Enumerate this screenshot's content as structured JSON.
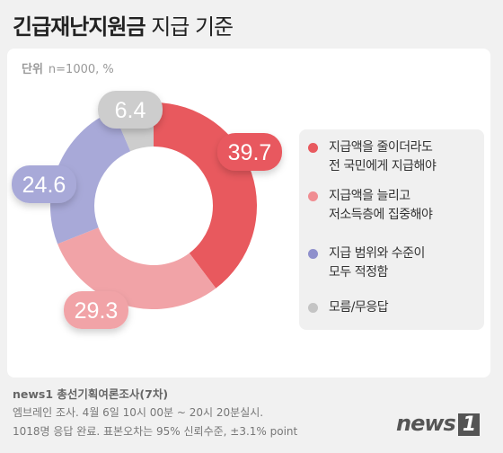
{
  "title": {
    "bold": "긴급재난지원금",
    "light": " 지급 기준"
  },
  "unit": {
    "label": "단위",
    "text": "n=1000, %"
  },
  "chart_data": {
    "type": "pie",
    "unit": "%",
    "series": [
      {
        "name": "지급액을 줄이더라도\n전 국민에게 지급해야",
        "value": 39.7,
        "color": "#e8595e"
      },
      {
        "name": "지급액을 늘리고\n저소득층에 집중해야",
        "value": 29.3,
        "color": "#f1a3a7"
      },
      {
        "name": "지급 범위와 수준이\n모두 적정함",
        "value": 24.6,
        "color": "#a8a9d8"
      },
      {
        "name": "모름/무응답",
        "value": 6.4,
        "color": "#cdcdcd"
      }
    ]
  },
  "footer": {
    "source": "news1 총선기획여론조사(7차)",
    "line1": "엠브레인 조사. 4월 6일 10시 00분 ~ 20시 20분실시.",
    "line2": "1018명 응답 완료. 표본오차는 95% 신뢰수준, ±3.1% point"
  },
  "logo": {
    "text": "news",
    "num": "1"
  }
}
